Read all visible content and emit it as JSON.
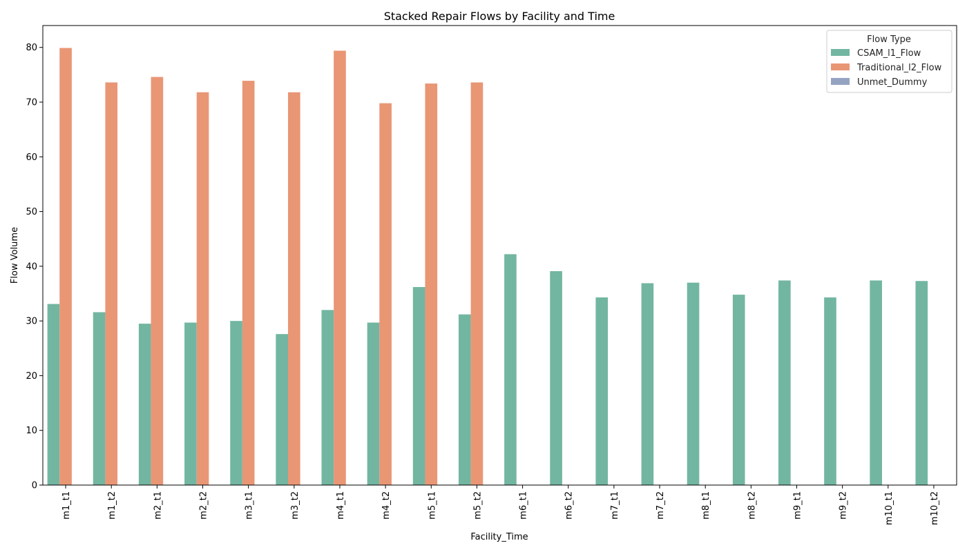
{
  "chart_data": {
    "type": "bar",
    "title": "Stacked Repair Flows by Facility and Time",
    "xlabel": "Facility_Time",
    "ylabel": "Flow Volume",
    "ylim": [
      0,
      84
    ],
    "yticks": [
      0,
      10,
      20,
      30,
      40,
      50,
      60,
      70,
      80
    ],
    "ytick_labels": [
      "0",
      "10",
      "20",
      "30",
      "40",
      "50",
      "60",
      "70",
      "80"
    ],
    "grid": false,
    "legend_position": "top-right",
    "legend_title": "Flow Type",
    "categories": [
      "m1_t1",
      "m1_t2",
      "m2_t1",
      "m2_t2",
      "m3_t1",
      "m3_t2",
      "m4_t1",
      "m4_t2",
      "m5_t1",
      "m5_t2",
      "m6_t1",
      "m6_t2",
      "m7_t1",
      "m7_t2",
      "m8_t1",
      "m8_t2",
      "m9_t1",
      "m9_t2",
      "m10_t1",
      "m10_t2"
    ],
    "series": [
      {
        "name": "CSAM_l1_Flow",
        "color": "#72b6a1",
        "values": [
          33.1,
          31.6,
          29.5,
          29.7,
          30.0,
          27.6,
          32.0,
          29.7,
          36.2,
          31.2,
          42.2,
          39.1,
          34.3,
          36.9,
          37.0,
          34.8,
          37.4,
          34.3,
          37.4,
          37.3
        ]
      },
      {
        "name": "Traditional_l2_Flow",
        "color": "#e99675",
        "values": [
          79.9,
          73.6,
          74.6,
          71.8,
          73.9,
          71.8,
          79.4,
          69.8,
          73.4,
          73.6,
          0,
          0,
          0,
          0,
          0,
          0,
          0,
          0,
          0,
          0
        ]
      },
      {
        "name": "Unmet_Dummy",
        "color": "#95a3c3",
        "values": [
          0,
          0,
          0,
          0,
          0,
          0,
          0,
          0,
          0,
          0,
          0,
          0,
          0,
          0,
          0,
          0,
          0,
          0,
          0,
          0
        ]
      }
    ]
  }
}
